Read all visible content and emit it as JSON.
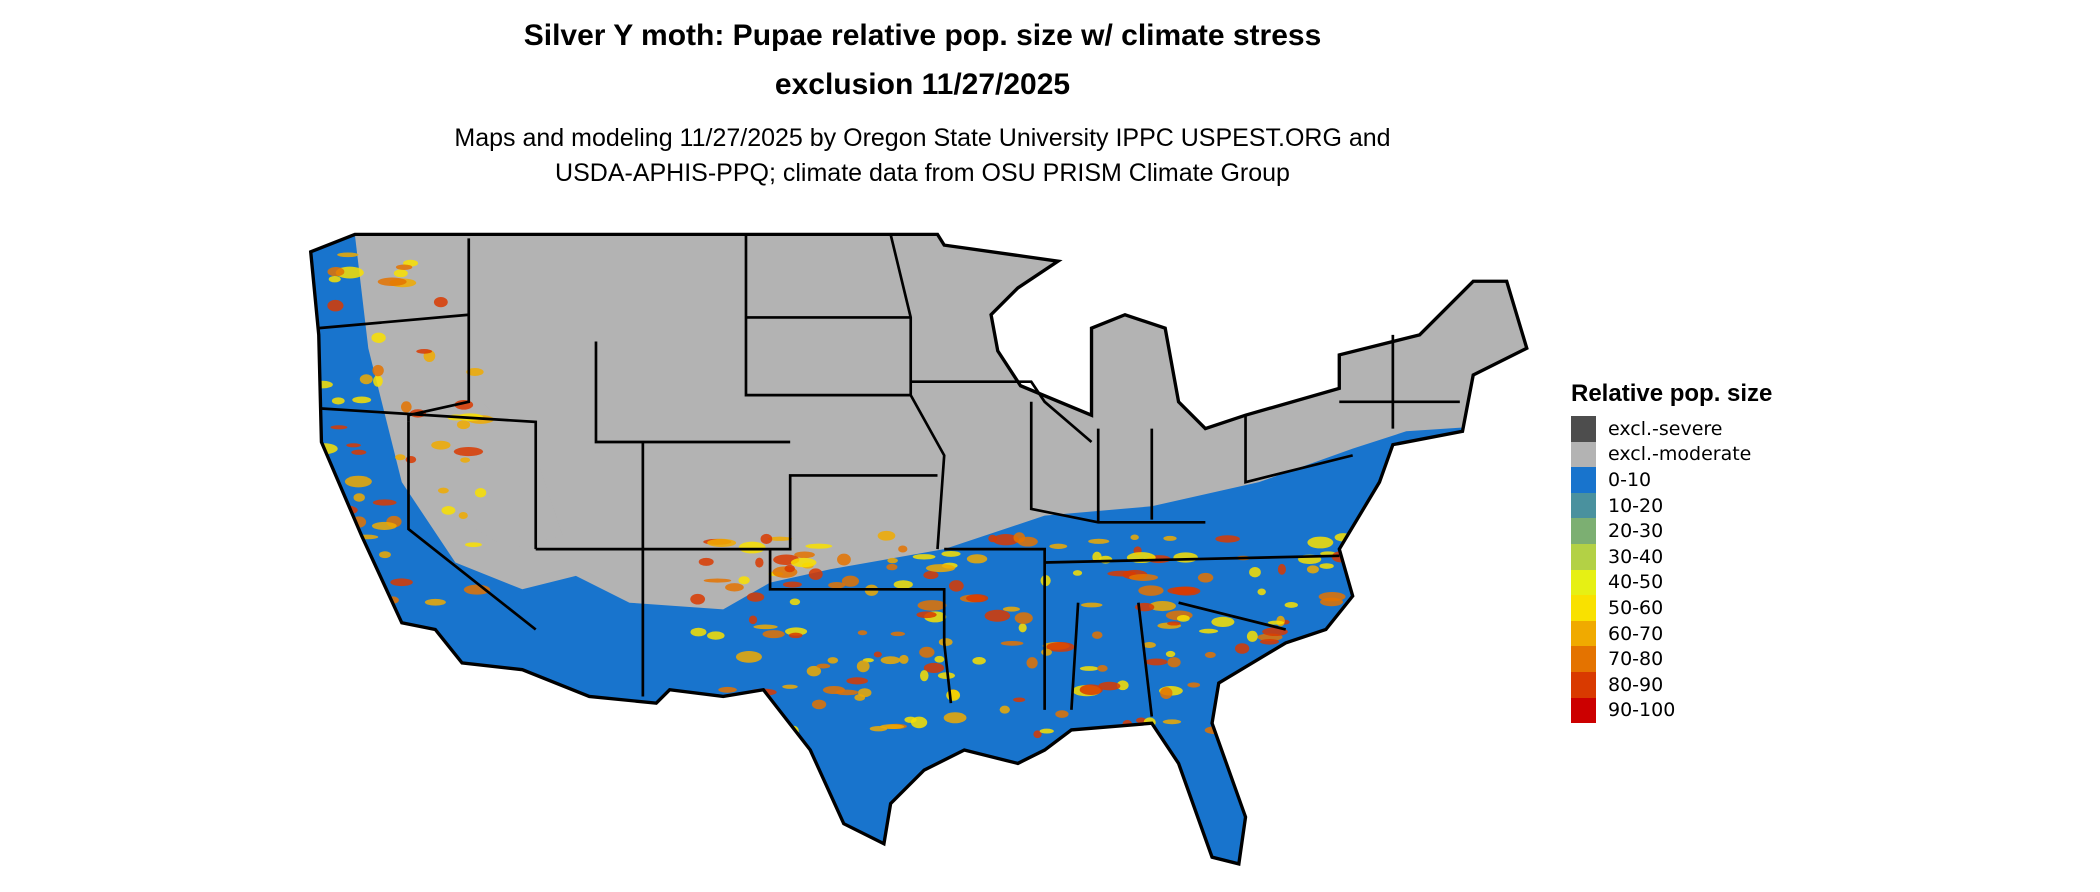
{
  "title_line1": "Silver Y moth: Pupae relative pop. size w/ climate stress",
  "title_line2": "exclusion 11/27/2025",
  "subtitle_line1": "Maps and modeling 11/27/2025 by Oregon State University IPPC USPEST.ORG and",
  "subtitle_line2": "USDA-APHIS-PPQ; climate data from OSU PRISM Climate Group",
  "legend": {
    "title": "Relative pop. size",
    "items": [
      {
        "label": "excl.-severe",
        "color": "#4d4d4d"
      },
      {
        "label": "excl.-moderate",
        "color": "#b3b3b3"
      },
      {
        "label": "0-10",
        "color": "#1874cd"
      },
      {
        "label": "10-20",
        "color": "#4a919e"
      },
      {
        "label": "20-30",
        "color": "#7caf72"
      },
      {
        "label": "30-40",
        "color": "#b3d145"
      },
      {
        "label": "40-50",
        "color": "#e6f014"
      },
      {
        "label": "50-60",
        "color": "#f9e100"
      },
      {
        "label": "60-70",
        "color": "#f0aa00"
      },
      {
        "label": "70-80",
        "color": "#e47300"
      },
      {
        "label": "80-90",
        "color": "#d93a00"
      },
      {
        "label": "90-100",
        "color": "#cc0000"
      }
    ]
  },
  "map": {
    "region": "Conterminous United States",
    "border_color": "#000000"
  }
}
